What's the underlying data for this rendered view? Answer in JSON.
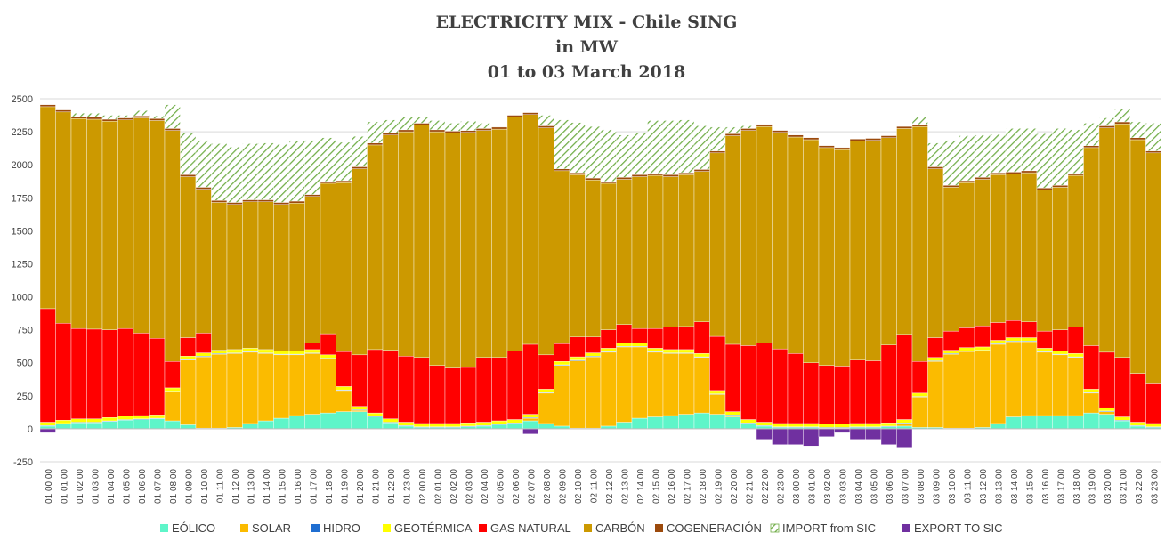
{
  "chart_data": {
    "type": "area",
    "stacked": true,
    "title": "ELECTRICITY MIX  - Chile SING",
    "subtitle": "in MW",
    "date_range": "01 to 03 March 2018",
    "ylim": [
      -250,
      2500
    ],
    "yticks": [
      -250,
      0,
      250,
      500,
      750,
      1000,
      1250,
      1500,
      1750,
      2000,
      2250,
      2500
    ],
    "grid": true,
    "legend_position": "bottom",
    "x": [
      "01 00:00",
      "01 01:00",
      "01 02:00",
      "01 03:00",
      "01 04:00",
      "01 05:00",
      "01 06:00",
      "01 07:00",
      "01 08:00",
      "01 09:00",
      "01 10:00",
      "01 11:00",
      "01 12:00",
      "01 13:00",
      "01 14:00",
      "01 15:00",
      "01 16:00",
      "01 17:00",
      "01 18:00",
      "01 19:00",
      "01 20:00",
      "01 21:00",
      "01 22:00",
      "01 23:00",
      "02 00:00",
      "02 01:00",
      "02 02:00",
      "02 03:00",
      "02 04:00",
      "02 05:00",
      "02 06:00",
      "02 07:00",
      "02 08:00",
      "02 09:00",
      "02 10:00",
      "02 11:00",
      "02 12:00",
      "02 13:00",
      "02 14:00",
      "02 15:00",
      "02 16:00",
      "02 17:00",
      "02 18:00",
      "02 19:00",
      "02 20:00",
      "02 21:00",
      "02 22:00",
      "02 23:00",
      "03 00:00",
      "03 01:00",
      "03 02:00",
      "03 03:00",
      "03 04:00",
      "03 05:00",
      "03 06:00",
      "03 07:00",
      "03 08:00",
      "03 09:00",
      "03 10:00",
      "03 11:00",
      "03 12:00",
      "03 13:00",
      "03 14:00",
      "03 15:00",
      "03 16:00",
      "03 17:00",
      "03 18:00",
      "03 19:00",
      "03 20:00",
      "03 21:00",
      "03 22:00",
      "03 23:00"
    ],
    "x_ticks_shown": [
      "01 00:00",
      "01 01:00",
      "01 02:00",
      "01 03:00",
      "01 04:00",
      "01 05:00",
      "01 06:00",
      "01 07:00",
      "01 08:00",
      "01 09:00",
      "01 10:00",
      "01 11:00",
      "01 12:00",
      "01 13:00",
      "01 14:00",
      "01 15:00",
      "01 16:00",
      "01 17:00",
      "01 18:00",
      "01 19:00",
      "01 20:00",
      "01 21:00",
      "01 22:00",
      "01 23:00",
      "02 00:00",
      "02 01:00",
      "02 02:00",
      "02 03:00",
      "02 04:00",
      "02 05:00",
      "02 06:00",
      "02 07:00",
      "02 08:00",
      "02 09:00",
      "02 10:00",
      "02 11:00",
      "02 12:00",
      "02 13:00",
      "02 14:00",
      "02 15:00",
      "02 16:00",
      "02 17:00",
      "02 18:00",
      "02 19:00",
      "02 20:00",
      "02 21:00",
      "02 22:00",
      "02 23:00",
      "03 00:00",
      "03 01:00",
      "03 02:00",
      "03 03:00",
      "03 04:00",
      "03 05:00",
      "03 06:00",
      "03 07:00",
      "03 08:00",
      "03 09:00",
      "03 10:00",
      "03 11:00",
      "03 12:00",
      "03 13:00",
      "03 14:00",
      "03 15:00",
      "03 16:00",
      "03 17:00",
      "03 18:00",
      "03 19:00",
      "03 20:00",
      "03 21:00",
      "03 22:00",
      "03 23:00"
    ],
    "series": [
      {
        "name": "EÓLICO",
        "color": "#5ef5c9",
        "values": [
          20,
          35,
          45,
          45,
          55,
          65,
          70,
          75,
          60,
          30,
          5,
          5,
          10,
          40,
          60,
          80,
          100,
          110,
          120,
          130,
          130,
          90,
          45,
          20,
          10,
          10,
          10,
          15,
          20,
          30,
          40,
          60,
          40,
          20,
          5,
          5,
          20,
          50,
          80,
          90,
          100,
          110,
          120,
          110,
          90,
          40,
          20,
          10,
          10,
          10,
          5,
          5,
          10,
          10,
          15,
          20,
          10,
          10,
          5,
          5,
          10,
          40,
          90,
          100,
          100,
          100,
          100,
          120,
          110,
          60,
          20,
          10
        ]
      },
      {
        "name": "SOLAR",
        "color": "#fbbb00",
        "values": [
          0,
          0,
          0,
          0,
          0,
          0,
          0,
          0,
          220,
          490,
          540,
          560,
          560,
          540,
          510,
          480,
          460,
          460,
          410,
          160,
          10,
          0,
          0,
          0,
          0,
          0,
          0,
          0,
          0,
          0,
          0,
          20,
          230,
          460,
          510,
          540,
          560,
          570,
          540,
          490,
          470,
          460,
          420,
          150,
          10,
          0,
          0,
          0,
          0,
          0,
          0,
          0,
          0,
          0,
          0,
          20,
          230,
          500,
          560,
          580,
          580,
          600,
          570,
          560,
          480,
          460,
          440,
          150,
          20,
          0,
          0,
          0
        ]
      },
      {
        "name": "HIDRO",
        "color": "#1f6ed1",
        "values": [
          5,
          5,
          5,
          5,
          5,
          5,
          5,
          5,
          5,
          5,
          5,
          5,
          5,
          5,
          5,
          5,
          5,
          5,
          5,
          5,
          5,
          5,
          5,
          5,
          5,
          5,
          5,
          5,
          5,
          5,
          5,
          5,
          5,
          5,
          5,
          5,
          5,
          5,
          5,
          5,
          5,
          5,
          5,
          5,
          5,
          5,
          5,
          5,
          5,
          5,
          5,
          5,
          5,
          5,
          5,
          5,
          5,
          5,
          5,
          5,
          5,
          5,
          5,
          5,
          5,
          5,
          5,
          5,
          5,
          5,
          5,
          5
        ]
      },
      {
        "name": "GEOTÉRMICA",
        "color": "#ffff00",
        "values": [
          25,
          25,
          25,
          25,
          25,
          25,
          25,
          25,
          25,
          25,
          25,
          25,
          25,
          25,
          25,
          25,
          25,
          25,
          25,
          25,
          25,
          25,
          25,
          25,
          25,
          25,
          25,
          25,
          25,
          25,
          25,
          25,
          25,
          25,
          25,
          25,
          25,
          25,
          25,
          25,
          25,
          25,
          25,
          25,
          25,
          25,
          25,
          25,
          25,
          25,
          25,
          25,
          25,
          25,
          25,
          25,
          25,
          25,
          25,
          25,
          25,
          25,
          25,
          25,
          25,
          25,
          25,
          25,
          25,
          25,
          25,
          25
        ]
      },
      {
        "name": "GAS NATURAL",
        "color": "#ff0000",
        "values": [
          860,
          735,
          685,
          680,
          665,
          665,
          625,
          580,
          200,
          140,
          150,
          0,
          0,
          0,
          0,
          0,
          0,
          50,
          160,
          265,
          390,
          480,
          520,
          500,
          500,
          440,
          420,
          420,
          490,
          480,
          520,
          530,
          260,
          135,
          150,
          120,
          140,
          140,
          110,
          150,
          170,
          175,
          240,
          410,
          510,
          560,
          600,
          565,
          530,
          460,
          445,
          440,
          480,
          475,
          590,
          645,
          240,
          150,
          145,
          150,
          160,
          135,
          130,
          120,
          130,
          160,
          200,
          330,
          420,
          450,
          370,
          300
        ]
      },
      {
        "name": "CARBÓN",
        "color": "#cc9900",
        "values": [
          1530,
          1600,
          1590,
          1590,
          1580,
          1580,
          1630,
          1650,
          1750,
          1220,
          1090,
          1120,
          1100,
          1110,
          1120,
          1110,
          1120,
          1110,
          1140,
          1280,
          1410,
          1550,
          1630,
          1700,
          1760,
          1770,
          1780,
          1780,
          1720,
          1730,
          1770,
          1740,
          1720,
          1310,
          1230,
          1190,
          1110,
          1100,
          1150,
          1160,
          1140,
          1150,
          1140,
          1390,
          1580,
          1630,
          1640,
          1640,
          1640,
          1690,
          1650,
          1640,
          1660,
          1670,
          1570,
          1560,
          1780,
          1280,
          1090,
          1100,
          1110,
          1120,
          1110,
          1130,
          1070,
          1080,
          1150,
          1500,
          1700,
          1770,
          1770,
          1750
        ]
      },
      {
        "name": "COGENERACIÓN",
        "color": "#9c4a0c",
        "values": [
          15,
          15,
          15,
          15,
          15,
          15,
          15,
          15,
          15,
          15,
          15,
          15,
          15,
          15,
          15,
          15,
          15,
          15,
          15,
          15,
          15,
          15,
          15,
          15,
          15,
          15,
          15,
          15,
          15,
          15,
          15,
          15,
          15,
          15,
          15,
          15,
          15,
          15,
          15,
          15,
          15,
          15,
          15,
          15,
          15,
          15,
          15,
          15,
          15,
          15,
          15,
          15,
          15,
          15,
          15,
          15,
          15,
          15,
          15,
          15,
          15,
          15,
          15,
          15,
          15,
          15,
          15,
          15,
          15,
          15,
          15,
          15
        ]
      },
      {
        "name": "IMPORT from SIC",
        "color": "#70ad47",
        "values": [
          0,
          0,
          25,
          30,
          30,
          20,
          40,
          20,
          180,
          320,
          355,
          430,
          420,
          425,
          430,
          440,
          455,
          410,
          330,
          290,
          230,
          160,
          100,
          100,
          50,
          70,
          60,
          70,
          40,
          0,
          0,
          0,
          80,
          370,
          380,
          390,
          390,
          320,
          320,
          400,
          410,
          400,
          330,
          180,
          50,
          20,
          0,
          0,
          0,
          0,
          0,
          0,
          0,
          0,
          0,
          0,
          60,
          180,
          340,
          340,
          320,
          290,
          330,
          320,
          410,
          430,
          330,
          170,
          60,
          100,
          120,
          210
        ]
      },
      {
        "name": "EXPORT TO SIC",
        "color": "#7030a0",
        "values": [
          -30,
          0,
          0,
          0,
          0,
          0,
          0,
          0,
          0,
          0,
          0,
          0,
          0,
          0,
          0,
          0,
          0,
          0,
          0,
          0,
          0,
          0,
          0,
          0,
          0,
          0,
          0,
          0,
          0,
          0,
          0,
          -40,
          0,
          0,
          0,
          0,
          0,
          0,
          0,
          0,
          0,
          0,
          0,
          0,
          0,
          0,
          -80,
          -120,
          -120,
          -130,
          -60,
          -30,
          -80,
          -80,
          -120,
          -140,
          0,
          0,
          0,
          0,
          0,
          0,
          0,
          0,
          0,
          0,
          0,
          0,
          0,
          0,
          0,
          0
        ]
      }
    ]
  }
}
